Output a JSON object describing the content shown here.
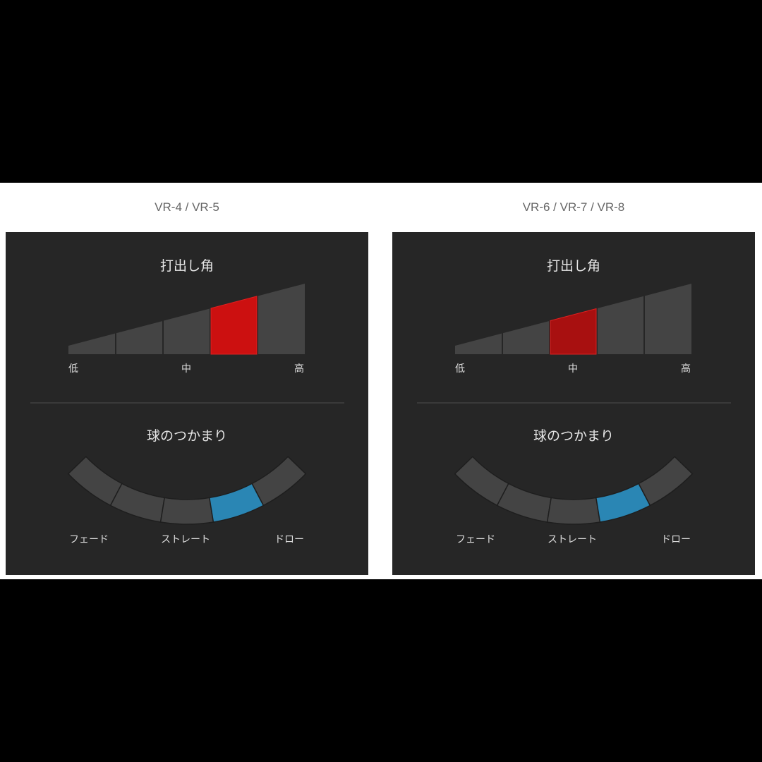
{
  "colors": {
    "panel": "#262626",
    "segment": "#444444",
    "launch_highlight": [
      "#cc1010",
      "#a81010"
    ],
    "draw_highlight": "#2a86b4"
  },
  "panels": [
    {
      "model": "VR-4 / VR-5",
      "launch": {
        "title": "打出し角",
        "labels": [
          "低",
          "中",
          "高"
        ],
        "levels": 5,
        "selected": 4
      },
      "grip": {
        "title": "球のつかまり",
        "labels": [
          "フェード",
          "ストレート",
          "ドロー"
        ],
        "levels": 5,
        "selected": 4
      }
    },
    {
      "model": "VR-6 / VR-7 / VR-8",
      "launch": {
        "title": "打出し角",
        "labels": [
          "低",
          "中",
          "高"
        ],
        "levels": 5,
        "selected": 3
      },
      "grip": {
        "title": "球のつかまり",
        "labels": [
          "フェード",
          "ストレート",
          "ドロー"
        ],
        "levels": 5,
        "selected": 4
      }
    }
  ]
}
